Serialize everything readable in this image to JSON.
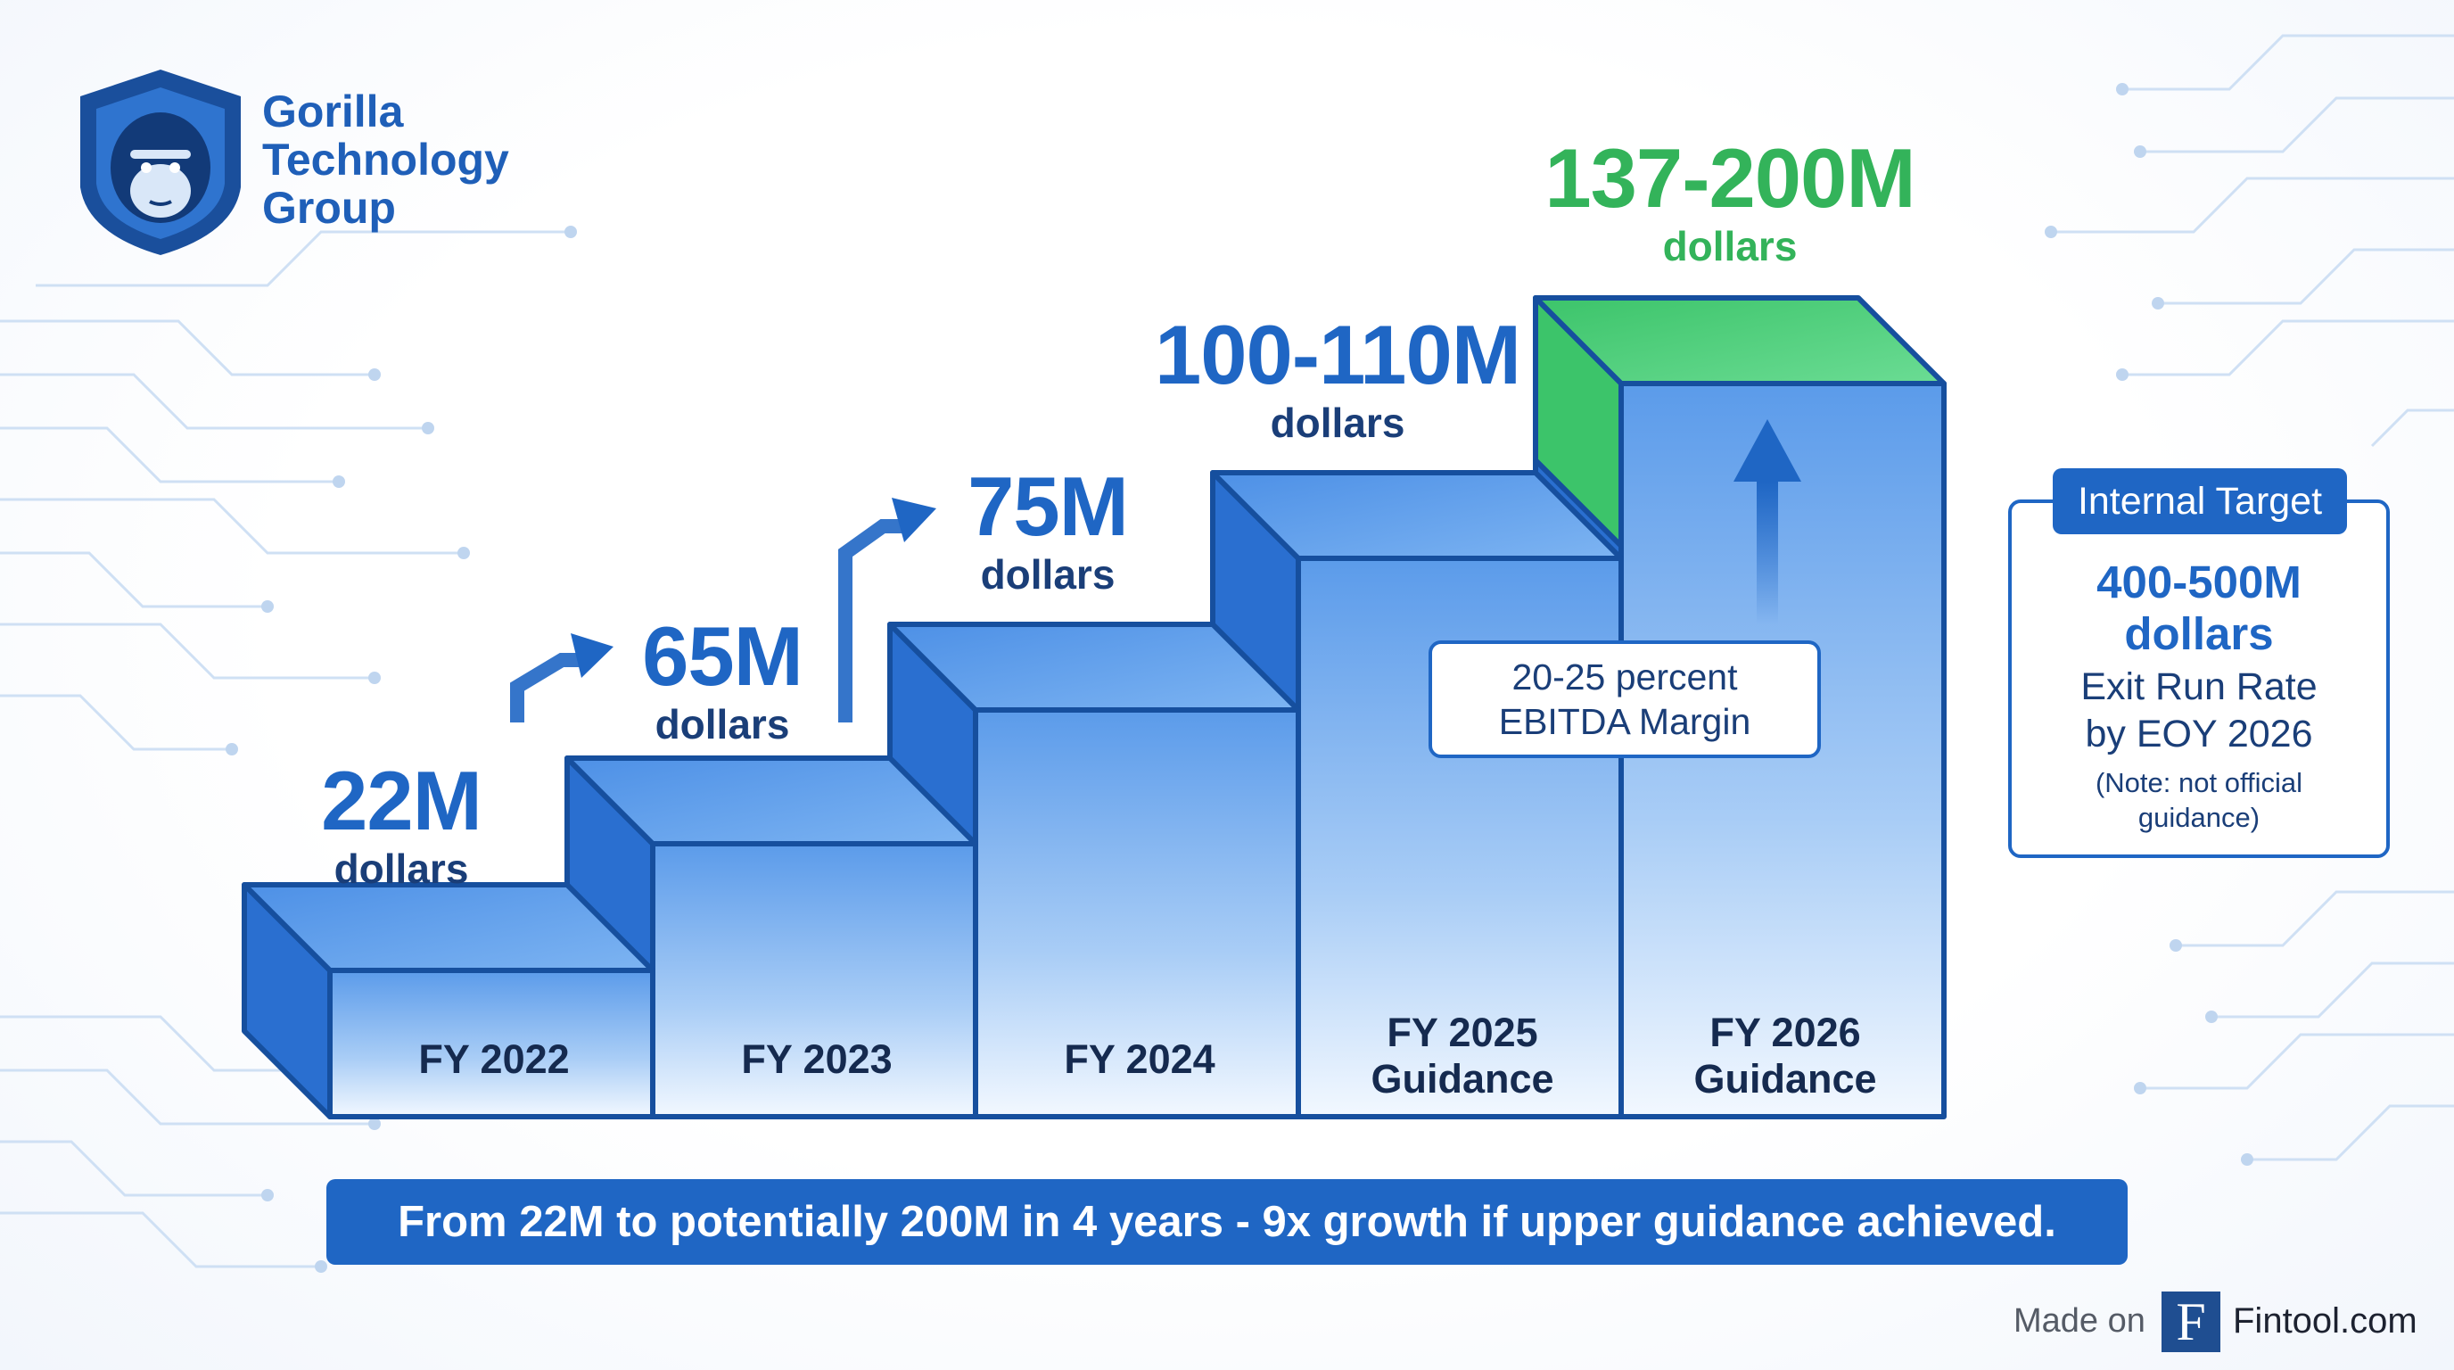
{
  "brand": {
    "name_line1": "Gorilla",
    "name_line2": "Technology",
    "name_line3": "Group"
  },
  "chart_data": {
    "type": "bar",
    "categories": [
      "FY 2022",
      "FY 2023",
      "FY 2024",
      "FY 2025 Guidance",
      "FY 2026 Guidance"
    ],
    "series": [
      {
        "values_low": [
          22,
          65,
          75,
          100,
          137
        ],
        "values_high": [
          22,
          65,
          75,
          110,
          200
        ]
      }
    ],
    "value_labels": [
      "22M",
      "65M",
      "75M",
      "100-110M",
      "137-200M"
    ],
    "value_units": "dollars",
    "category_lines": [
      [
        "FY 2022"
      ],
      [
        "FY 2023"
      ],
      [
        "FY 2024"
      ],
      [
        "FY 2025",
        "Guidance"
      ],
      [
        "FY 2026",
        "Guidance"
      ]
    ],
    "highlight_color": "#3cc46a",
    "bar_color": "#2f7fdc"
  },
  "ebitda_callout": {
    "line1": "20-25 percent",
    "line2": "EBITDA Margin"
  },
  "internal_target": {
    "header": "Internal Target",
    "amount_line1": "400-500M",
    "amount_line2": "dollars",
    "desc_line1": "Exit Run Rate",
    "desc_line2": "by EOY 2026",
    "note_line1": "(Note: not official",
    "note_line2": "guidance)"
  },
  "banner": {
    "text": "From 22M to potentially 200M in 4 years - 9x growth if upper guidance achieved."
  },
  "footer": {
    "made_on": "Made on",
    "logo_letter": "F",
    "site": "Fintool.com"
  },
  "colors": {
    "primary": "#1f66c4",
    "green": "#33b35a",
    "dark_text": "#152a4f"
  }
}
